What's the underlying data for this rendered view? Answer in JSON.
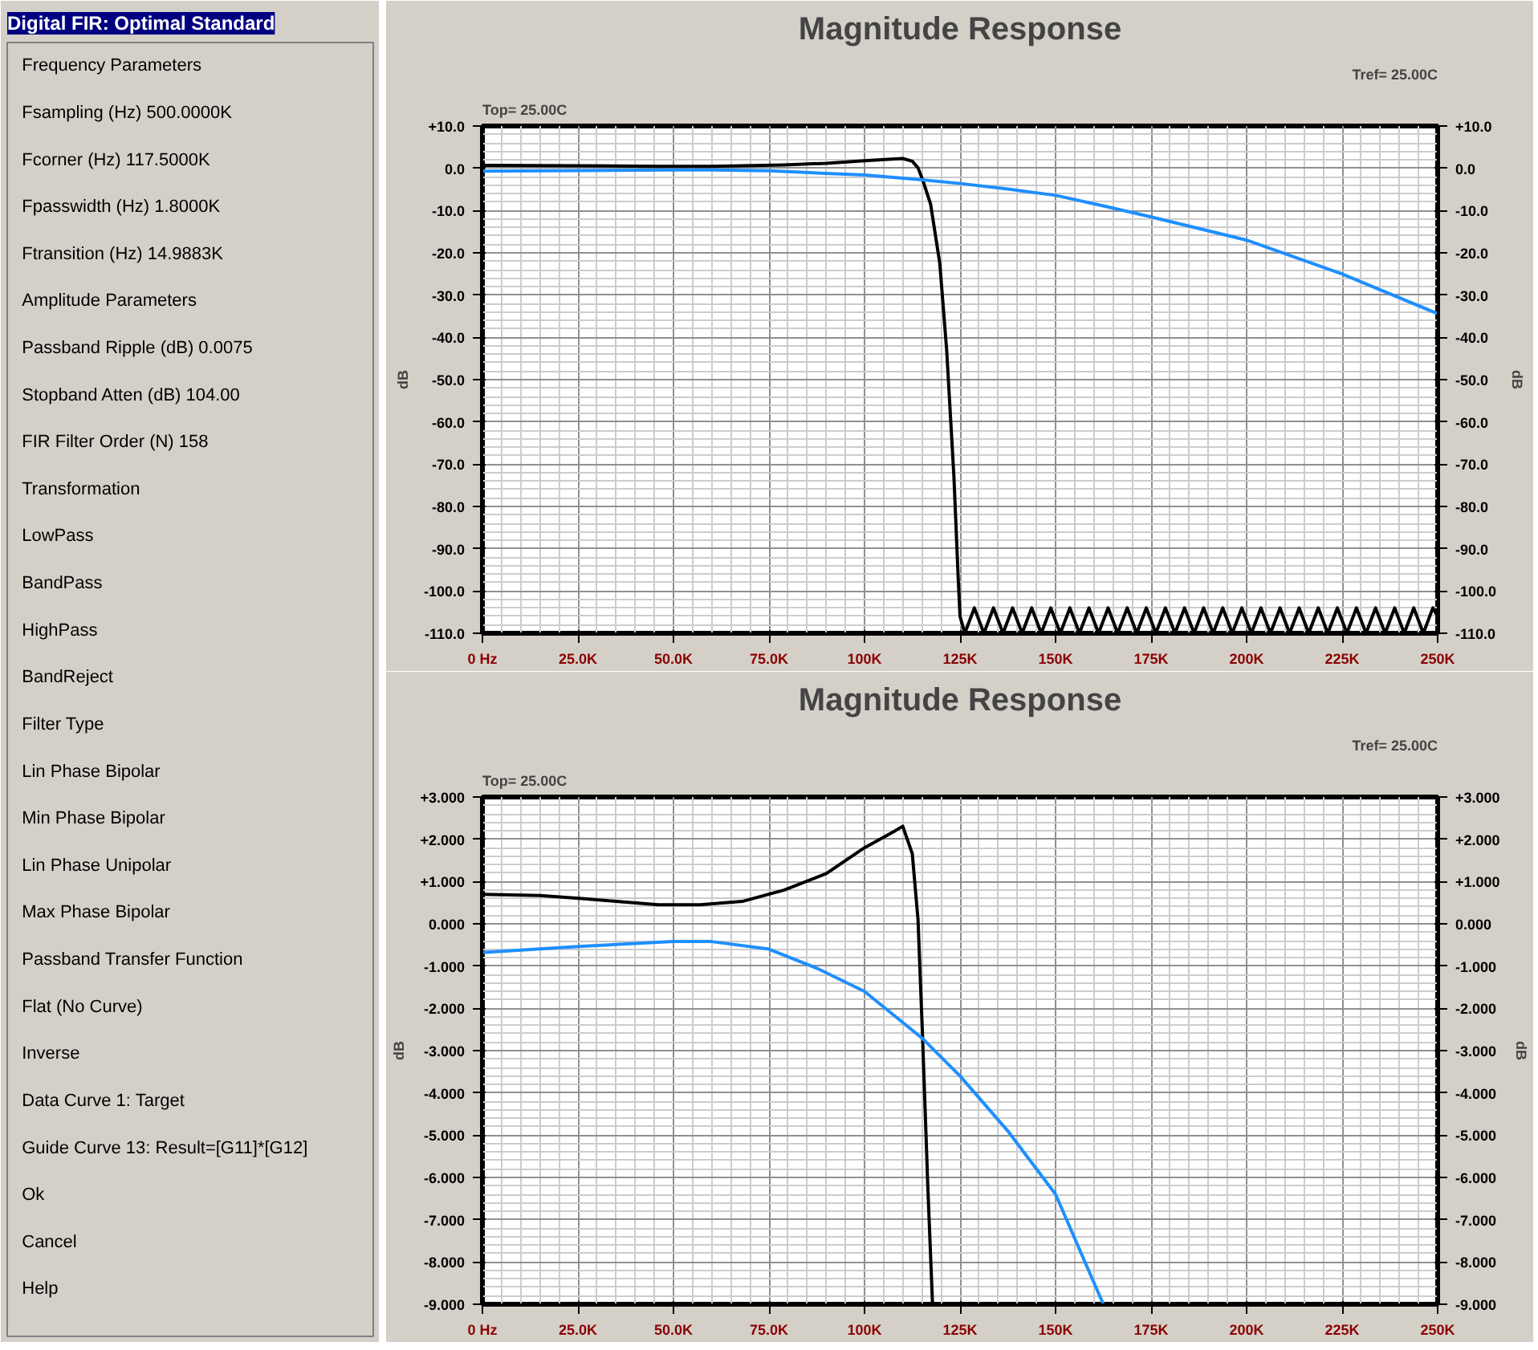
{
  "chart_data": [
    {
      "type": "line",
      "title": "Magnitude Response",
      "ylabel": "dB",
      "y2label": "dB",
      "annotations": [
        "Top= 25.00C",
        "Tref= 25.00C"
      ],
      "xlim": [
        0,
        250000
      ],
      "ylim": [
        -110,
        10
      ],
      "y2lim": [
        -110,
        10
      ],
      "grid": true,
      "xticks": [
        {
          "value": 0,
          "label": "0 Hz"
        },
        {
          "value": 25000,
          "label": "25.0K"
        },
        {
          "value": 50000,
          "label": "50.0K"
        },
        {
          "value": 75000,
          "label": "75.0K"
        },
        {
          "value": 100000,
          "label": "100K"
        },
        {
          "value": 125000,
          "label": "125K"
        },
        {
          "value": 150000,
          "label": "150K"
        },
        {
          "value": 175000,
          "label": "175K"
        },
        {
          "value": 200000,
          "label": "200K"
        },
        {
          "value": 225000,
          "label": "225K"
        },
        {
          "value": 250000,
          "label": "250K"
        }
      ],
      "yticks": [
        {
          "value": 10,
          "label": "+10.0"
        },
        {
          "value": 0,
          "label": "0.0"
        },
        {
          "value": -10,
          "label": "-10.0"
        },
        {
          "value": -20,
          "label": "-20.0"
        },
        {
          "value": -30,
          "label": "-30.0"
        },
        {
          "value": -40,
          "label": "-40.0"
        },
        {
          "value": -50,
          "label": "-50.0"
        },
        {
          "value": -60,
          "label": "-60.0"
        },
        {
          "value": -70,
          "label": "-70.0"
        },
        {
          "value": -80,
          "label": "-80.0"
        },
        {
          "value": -90,
          "label": "-90.0"
        },
        {
          "value": -100,
          "label": "-100.0"
        },
        {
          "value": -110,
          "label": "-110.0"
        }
      ],
      "y2ticks": [
        {
          "value": 10,
          "label": "+10.0"
        },
        {
          "value": 0,
          "label": "0.0"
        },
        {
          "value": -10,
          "label": "-10.0"
        },
        {
          "value": -20,
          "label": "-20.0"
        },
        {
          "value": -30,
          "label": "-30.0"
        },
        {
          "value": -40,
          "label": "-40.0"
        },
        {
          "value": -50,
          "label": "-50.0"
        },
        {
          "value": -60,
          "label": "-60.0"
        },
        {
          "value": -70,
          "label": "-70.0"
        },
        {
          "value": -80,
          "label": "-80.0"
        },
        {
          "value": -90,
          "label": "-90.0"
        },
        {
          "value": -100,
          "label": "-100.0"
        },
        {
          "value": -110,
          "label": "-110.0"
        }
      ],
      "series": [
        {
          "color": "#000000",
          "x": [
            0,
            25000,
            46000,
            60000,
            79000,
            90000,
            100000,
            108000,
            110000,
            112500,
            114000,
            115200,
            117300,
            119700,
            121500,
            123400,
            124600,
            125000,
            126250,
            128750,
            131250,
            133750,
            136250,
            138750,
            141250,
            143750,
            146250,
            148750,
            151250,
            153750,
            156250,
            158750,
            161250,
            163750,
            166250,
            168750,
            171250,
            173750,
            176250,
            178750,
            181250,
            183750,
            186250,
            188750,
            191250,
            193750,
            196250,
            198750,
            201250,
            203750,
            206250,
            208750,
            211250,
            213750,
            216250,
            218750,
            221250,
            223750,
            226250,
            228750,
            231250,
            233750,
            236250,
            238750,
            241250,
            243750,
            246250,
            248750,
            250000
          ],
          "values": [
            0.7,
            0.6,
            0.45,
            0.48,
            0.8,
            1.19,
            1.8,
            2.2,
            2.31,
            1.66,
            0.1,
            -2.7,
            -8.5,
            -22.5,
            -43,
            -73,
            -98.7,
            -106,
            -110,
            -104,
            -110,
            -104,
            -110,
            -104,
            -110,
            -104,
            -110,
            -104,
            -110,
            -104,
            -110,
            -104,
            -110,
            -104,
            -110,
            -104,
            -110,
            -104,
            -110,
            -104,
            -110,
            -104,
            -110,
            -104,
            -110,
            -104,
            -110,
            -104,
            -110,
            -104,
            -110,
            -104,
            -110,
            -104,
            -110,
            -104,
            -110,
            -104,
            -110,
            -104,
            -110,
            -104,
            -110,
            -104,
            -110,
            -104,
            -110,
            -104,
            -106
          ]
        },
        {
          "color": "#1e8fff",
          "x": [
            0,
            26000,
            50000,
            60000,
            75000,
            100000,
            115000,
            125000,
            137500,
            150000,
            162500,
            175000,
            200000,
            225000,
            250000
          ],
          "values": [
            -0.68,
            -0.53,
            -0.4,
            -0.4,
            -0.6,
            -1.6,
            -2.7,
            -3.6,
            -4.9,
            -6.4,
            -8.9,
            -11.5,
            -17,
            -25,
            -34.4
          ]
        }
      ]
    },
    {
      "type": "other",
      "title": "Digital FIR: Optimal Standard",
      "annotations": [
        "Frequency Parameters",
        "Fsampling (Hz)   500.0000K",
        "Fcorner (Hz)   117.5000K",
        "Fpasswidth (Hz)   1.8000K",
        "Ftransition (Hz)   14.9883K",
        "Amplitude Parameters",
        "Passband Ripple (dB)   0.0075",
        "Stopband Atten (dB)   104.00",
        "FIR Filter Order (N)   158",
        "Transformation",
        "LowPass",
        "BandPass",
        "HighPass",
        "BandReject",
        "Filter Type",
        "Lin Phase Bipolar",
        "Min Phase Bipolar",
        "Lin Phase Unipolar",
        "Max Phase Bipolar",
        "Passband Transfer Function",
        "Flat (No Curve)",
        "Inverse",
        "Data Curve   1: Target",
        "Guide Curve   13: Result=[G11]*[G12]",
        "Ok",
        "Cancel",
        "Help"
      ]
    },
    {
      "type": "line",
      "title": "Magnitude Response",
      "ylabel": "dB",
      "y2label": "dB",
      "annotations": [
        "Top= 25.00C",
        "Tref= 25.00C"
      ],
      "xlim": [
        0,
        250000
      ],
      "ylim": [
        -9,
        3
      ],
      "y2lim": [
        -9,
        3
      ],
      "grid": true,
      "xticks": [
        {
          "value": 0,
          "label": "0 Hz"
        },
        {
          "value": 25000,
          "label": "25.0K"
        },
        {
          "value": 50000,
          "label": "50.0K"
        },
        {
          "value": 75000,
          "label": "75.0K"
        },
        {
          "value": 100000,
          "label": "100K"
        },
        {
          "value": 125000,
          "label": "125K"
        },
        {
          "value": 150000,
          "label": "150K"
        },
        {
          "value": 175000,
          "label": "175K"
        },
        {
          "value": 200000,
          "label": "200K"
        },
        {
          "value": 225000,
          "label": "225K"
        },
        {
          "value": 250000,
          "label": "250K"
        }
      ],
      "yticks": [
        {
          "value": 3,
          "label": "+3.000"
        },
        {
          "value": 2,
          "label": "+2.000"
        },
        {
          "value": 1,
          "label": "+1.000"
        },
        {
          "value": 0,
          "label": "0.000"
        },
        {
          "value": -1,
          "label": "-1.000"
        },
        {
          "value": -2,
          "label": "-2.000"
        },
        {
          "value": -3,
          "label": "-3.000"
        },
        {
          "value": -4,
          "label": "-4.000"
        },
        {
          "value": -5,
          "label": "-5.000"
        },
        {
          "value": -6,
          "label": "-6.000"
        },
        {
          "value": -7,
          "label": "-7.000"
        },
        {
          "value": -8,
          "label": "-8.000"
        },
        {
          "value": -9,
          "label": "-9.000"
        }
      ],
      "y2ticks": [
        {
          "value": 3,
          "label": "+3.000"
        },
        {
          "value": 2,
          "label": "+2.000"
        },
        {
          "value": 1,
          "label": "+1.000"
        },
        {
          "value": 0,
          "label": "0.000"
        },
        {
          "value": -1,
          "label": "-1.000"
        },
        {
          "value": -2,
          "label": "-2.000"
        },
        {
          "value": -3,
          "label": "-3.000"
        },
        {
          "value": -4,
          "label": "-4.000"
        },
        {
          "value": -5,
          "label": "-5.000"
        },
        {
          "value": -6,
          "label": "-6.000"
        },
        {
          "value": -7,
          "label": "-7.000"
        },
        {
          "value": -8,
          "label": "-8.000"
        },
        {
          "value": -9,
          "label": "-9.000"
        }
      ],
      "series": [
        {
          "color": "#000000",
          "x": [
            0,
            15000,
            26000,
            35000,
            46000,
            57000,
            68000,
            79000,
            90000,
            100000,
            108000,
            110000,
            112500,
            114000,
            115200,
            116600,
            117800
          ],
          "values": [
            0.7,
            0.67,
            0.6,
            0.53,
            0.45,
            0.45,
            0.53,
            0.8,
            1.19,
            1.8,
            2.2,
            2.31,
            1.66,
            0.1,
            -2.7,
            -6.3,
            -9.0
          ]
        },
        {
          "color": "#1e8fff",
          "x": [
            0,
            26000,
            50000,
            60000,
            75000,
            87500,
            100000,
            115000,
            125000,
            137500,
            150000,
            162500
          ],
          "values": [
            -0.68,
            -0.53,
            -0.42,
            -0.42,
            -0.6,
            -1.05,
            -1.6,
            -2.7,
            -3.6,
            -4.9,
            -6.4,
            -9.0
          ]
        }
      ]
    }
  ]
}
